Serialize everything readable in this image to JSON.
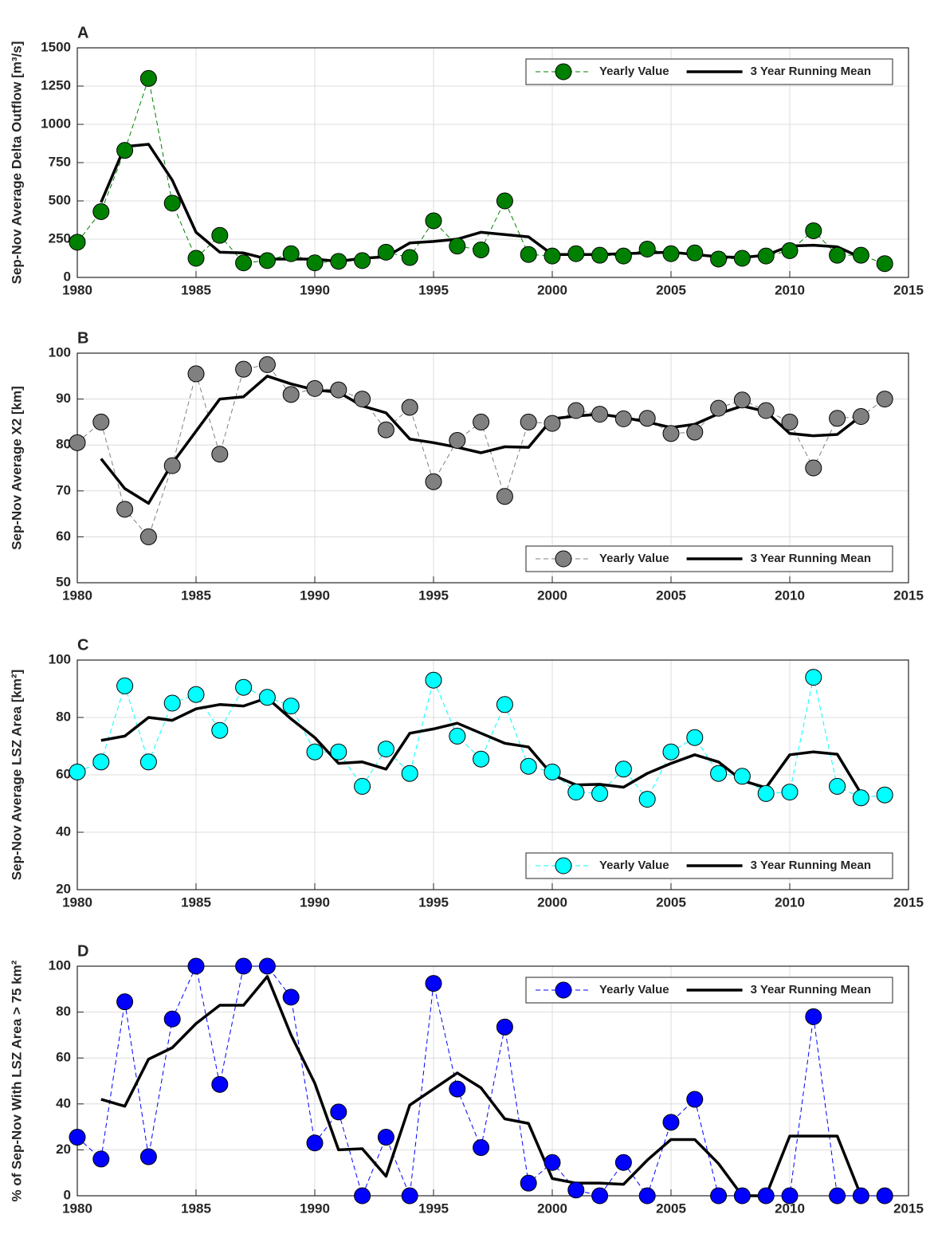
{
  "chart_data": [
    {
      "type": "line",
      "title": "A",
      "ylabel": "Sep-Nov Average Delta Outflow [m³/s]",
      "x": [
        1980,
        1981,
        1982,
        1983,
        1984,
        1985,
        1986,
        1987,
        1988,
        1989,
        1990,
        1991,
        1992,
        1993,
        1994,
        1995,
        1996,
        1997,
        1998,
        1999,
        2000,
        2001,
        2002,
        2003,
        2004,
        2005,
        2006,
        2007,
        2008,
        2009,
        2010,
        2011,
        2012,
        2013,
        2014
      ],
      "xlim": [
        1980,
        2015
      ],
      "xticks": [
        1980,
        1985,
        1990,
        1995,
        2000,
        2005,
        2010,
        2015
      ],
      "ylim": [
        0,
        1500
      ],
      "yticks": [
        0,
        250,
        500,
        750,
        1000,
        1250,
        1500
      ],
      "grid": true,
      "legend": "upper right",
      "series": [
        {
          "name": "Yearly Value",
          "color": "#008000",
          "line": "dashed",
          "marker": "o",
          "values": [
            230,
            430,
            830,
            1300,
            485,
            125,
            275,
            95,
            110,
            155,
            95,
            105,
            110,
            165,
            130,
            370,
            205,
            180,
            500,
            150,
            140,
            155,
            145,
            140,
            185,
            155,
            160,
            120,
            125,
            140,
            175,
            305,
            145,
            145,
            90
          ]
        },
        {
          "name": "3 Year Running Mean",
          "color": "#000000",
          "line": "solid",
          "values": [
            null,
            490,
            855,
            870,
            635,
            295,
            165,
            160,
            120,
            120,
            120,
            105,
            125,
            135,
            225,
            235,
            250,
            295,
            280,
            265,
            150,
            150,
            150,
            155,
            160,
            165,
            150,
            135,
            130,
            145,
            205,
            210,
            200,
            130,
            null
          ]
        }
      ]
    },
    {
      "type": "line",
      "title": "B",
      "ylabel": "Sep-Nov Average X2 [km]",
      "x": [
        1980,
        1981,
        1982,
        1983,
        1984,
        1985,
        1986,
        1987,
        1988,
        1989,
        1990,
        1991,
        1992,
        1993,
        1994,
        1995,
        1996,
        1997,
        1998,
        1999,
        2000,
        2001,
        2002,
        2003,
        2004,
        2005,
        2006,
        2007,
        2008,
        2009,
        2010,
        2011,
        2012,
        2013,
        2014
      ],
      "xlim": [
        1980,
        2015
      ],
      "xticks": [
        1980,
        1985,
        1990,
        1995,
        2000,
        2005,
        2010,
        2015
      ],
      "ylim": [
        50,
        100
      ],
      "yticks": [
        50,
        60,
        70,
        80,
        90,
        100
      ],
      "grid": true,
      "legend": "lower right",
      "series": [
        {
          "name": "Yearly Value",
          "color": "#808080",
          "line": "dashed",
          "marker": "o",
          "values": [
            80.5,
            85,
            66,
            60,
            75.5,
            95.5,
            78,
            96.5,
            97.5,
            91,
            92.3,
            92,
            90,
            83.3,
            88.2,
            72,
            81,
            85,
            68.8,
            85,
            84.7,
            87.5,
            86.7,
            85.7,
            85.8,
            82.5,
            82.8,
            88,
            89.8,
            87.5,
            85,
            75,
            85.8,
            86.2,
            90
          ]
        },
        {
          "name": "3 Year Running Mean",
          "color": "#000000",
          "line": "solid",
          "values": [
            null,
            77,
            70.5,
            67.3,
            76,
            83,
            90,
            90.5,
            95,
            93.3,
            92,
            91.5,
            88.5,
            87,
            81.3,
            80.5,
            79.5,
            78.3,
            79.6,
            79.5,
            85.7,
            86.3,
            86.7,
            86,
            85,
            83.8,
            84.5,
            86.8,
            88.5,
            87.3,
            82.5,
            82,
            82.3,
            86.3,
            null
          ]
        }
      ]
    },
    {
      "type": "line",
      "title": "C",
      "ylabel": "Sep-Nov Average LSZ Area [km²]",
      "x": [
        1980,
        1981,
        1982,
        1983,
        1984,
        1985,
        1986,
        1987,
        1988,
        1989,
        1990,
        1991,
        1992,
        1993,
        1994,
        1995,
        1996,
        1997,
        1998,
        1999,
        2000,
        2001,
        2002,
        2003,
        2004,
        2005,
        2006,
        2007,
        2008,
        2009,
        2010,
        2011,
        2012,
        2013,
        2014
      ],
      "xlim": [
        1980,
        2015
      ],
      "xticks": [
        1980,
        1985,
        1990,
        1995,
        2000,
        2005,
        2010,
        2015
      ],
      "ylim": [
        20,
        100
      ],
      "yticks": [
        20,
        40,
        60,
        80,
        100
      ],
      "grid": true,
      "legend": "lower right",
      "series": [
        {
          "name": "Yearly Value",
          "color": "#00ffff",
          "line": "dashed",
          "marker": "o",
          "values": [
            61,
            64.5,
            91,
            64.5,
            85,
            88,
            75.5,
            90.5,
            87,
            84,
            68,
            68,
            56,
            69,
            60.5,
            93,
            73.5,
            65.5,
            84.5,
            63,
            61,
            54,
            53.5,
            62,
            51.5,
            68,
            73,
            60.5,
            59.5,
            53.5,
            54,
            94,
            56,
            52,
            53
          ]
        },
        {
          "name": "3 Year Running Mean",
          "color": "#000000",
          "line": "solid",
          "values": [
            null,
            72,
            73.5,
            80,
            79,
            83,
            84.5,
            84,
            86.8,
            79.5,
            73,
            64,
            64.5,
            62,
            74.5,
            76,
            78,
            74.5,
            71,
            69.7,
            60,
            56.5,
            56.7,
            55.7,
            60.5,
            64,
            67,
            64.5,
            58,
            55.5,
            67,
            68,
            67.2,
            53.5,
            null
          ]
        }
      ]
    },
    {
      "type": "line",
      "title": "D",
      "ylabel": "% of Sep-Nov With LSZ Area > 75 km²",
      "x": [
        1980,
        1981,
        1982,
        1983,
        1984,
        1985,
        1986,
        1987,
        1988,
        1989,
        1990,
        1991,
        1992,
        1993,
        1994,
        1995,
        1996,
        1997,
        1998,
        1999,
        2000,
        2001,
        2002,
        2003,
        2004,
        2005,
        2006,
        2007,
        2008,
        2009,
        2010,
        2011,
        2012,
        2013,
        2014
      ],
      "xlim": [
        1980,
        2015
      ],
      "xticks": [
        1980,
        1985,
        1990,
        1995,
        2000,
        2005,
        2010,
        2015
      ],
      "ylim": [
        0,
        100
      ],
      "yticks": [
        0,
        20,
        40,
        60,
        80,
        100
      ],
      "grid": true,
      "legend": "upper right",
      "series": [
        {
          "name": "Yearly Value",
          "color": "#0000ff",
          "line": "dashed",
          "marker": "o",
          "values": [
            25.5,
            16,
            84.5,
            17,
            77,
            100,
            48.5,
            100,
            100,
            86.5,
            23,
            36.5,
            0,
            25.5,
            0,
            92.5,
            46.5,
            21,
            73.5,
            5.5,
            14.5,
            2.5,
            0,
            14.5,
            0,
            32,
            42,
            0,
            0,
            0,
            0,
            78,
            0,
            0,
            0
          ]
        },
        {
          "name": "3 Year Running Mean",
          "color": "#000000",
          "line": "solid",
          "values": [
            null,
            42,
            39,
            59.5,
            64.5,
            75,
            83,
            83,
            95.5,
            70,
            49,
            20,
            20.5,
            8.5,
            39.5,
            46.5,
            53.5,
            47,
            33.5,
            31.5,
            7.5,
            5.5,
            5.5,
            5,
            15.5,
            24.5,
            24.5,
            14,
            0,
            0,
            26,
            26,
            26,
            0,
            null
          ]
        }
      ]
    }
  ]
}
